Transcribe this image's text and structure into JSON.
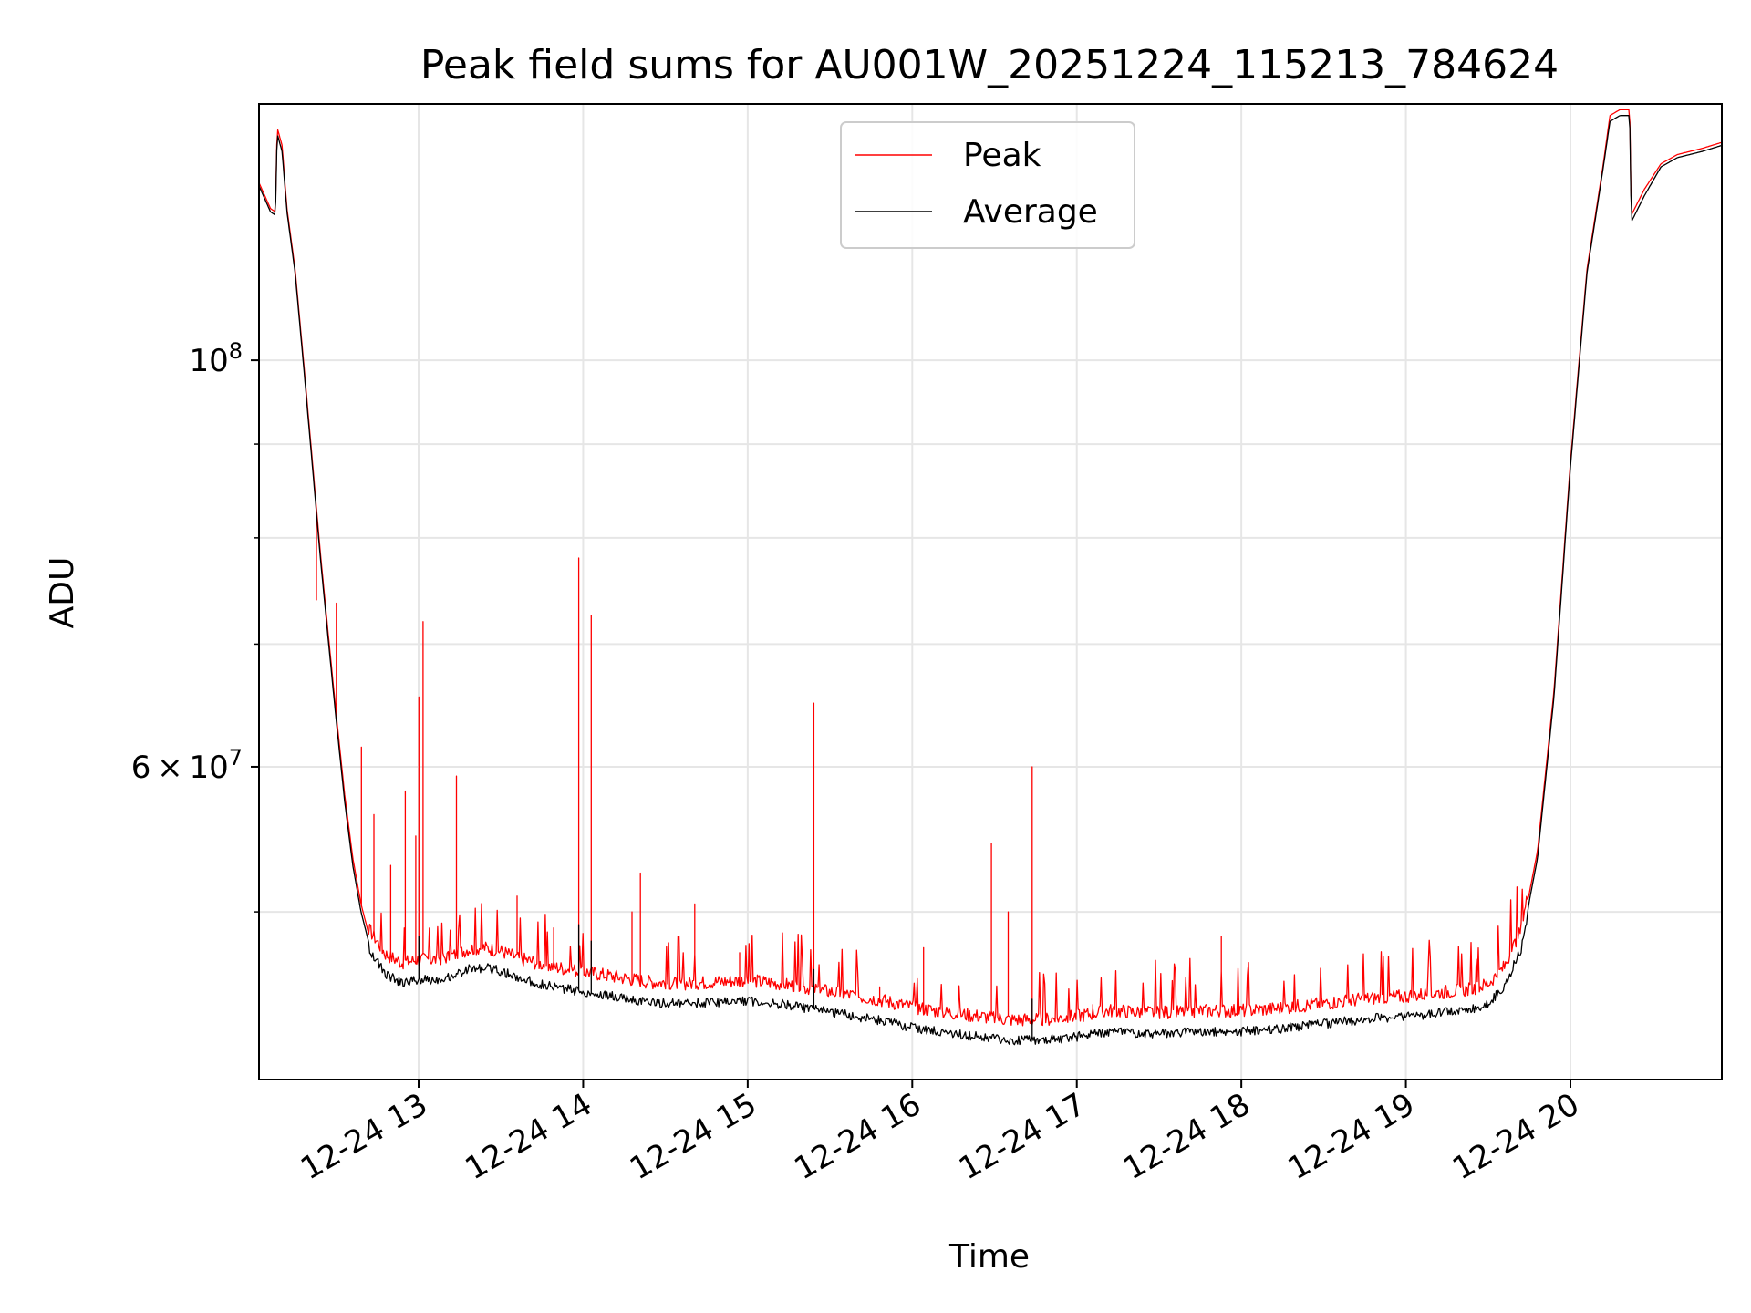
{
  "chart_data": {
    "type": "line",
    "title": "Peak field sums for AU001W_20251224_115213_784624",
    "xlabel": "Time",
    "ylabel": "ADU",
    "yscale": "log",
    "ylim": [
      40500000,
      138000000
    ],
    "xlim": [
      12.03,
      20.92
    ],
    "x_ticks": [
      {
        "value": 13,
        "label": "12-24 13"
      },
      {
        "value": 14,
        "label": "12-24 14"
      },
      {
        "value": 15,
        "label": "12-24 15"
      },
      {
        "value": 16,
        "label": "12-24 16"
      },
      {
        "value": 17,
        "label": "12-24 17"
      },
      {
        "value": 18,
        "label": "12-24 18"
      },
      {
        "value": 19,
        "label": "12-24 19"
      },
      {
        "value": 20,
        "label": "12-24 20"
      }
    ],
    "y_major_ticks": [
      {
        "value": 100000000,
        "base": "10",
        "exp": "8"
      },
      {
        "value": 60000000,
        "mantissa": "6",
        "times": "×",
        "base": "10",
        "exp": "7"
      }
    ],
    "y_minor_ticks": [
      50000000,
      70000000,
      80000000,
      90000000
    ],
    "grid": true,
    "legend": {
      "position": "top-center",
      "entries": [
        "Peak",
        "Average"
      ]
    },
    "series": [
      {
        "name": "Peak",
        "color": "#ff0000",
        "baseline": [
          [
            12.03,
            125000000
          ],
          [
            12.1,
            121000000
          ],
          [
            12.13,
            120500000
          ],
          [
            12.14,
            134000000
          ],
          [
            12.17,
            131000000
          ],
          [
            12.2,
            121000000
          ],
          [
            12.25,
            112000000
          ],
          [
            12.3,
            100000000
          ],
          [
            12.35,
            89000000
          ],
          [
            12.4,
            79000000
          ],
          [
            12.45,
            71000000
          ],
          [
            12.5,
            64000000
          ],
          [
            12.55,
            58000000
          ],
          [
            12.6,
            53500000
          ],
          [
            12.65,
            50500000
          ],
          [
            12.7,
            48500000
          ],
          [
            12.8,
            47000000
          ],
          [
            12.9,
            46500000
          ],
          [
            13.0,
            46700000
          ],
          [
            13.1,
            46700000
          ],
          [
            13.2,
            46900000
          ],
          [
            13.3,
            47300000
          ],
          [
            13.4,
            47400000
          ],
          [
            13.5,
            47200000
          ],
          [
            13.6,
            46800000
          ],
          [
            13.8,
            46300000
          ],
          [
            14.0,
            46000000
          ],
          [
            14.2,
            45700000
          ],
          [
            14.4,
            45400000
          ],
          [
            14.6,
            45300000
          ],
          [
            14.8,
            45400000
          ],
          [
            15.0,
            45500000
          ],
          [
            15.2,
            45300000
          ],
          [
            15.4,
            45000000
          ],
          [
            15.6,
            44700000
          ],
          [
            15.8,
            44400000
          ],
          [
            16.0,
            44000000
          ],
          [
            16.2,
            43700000
          ],
          [
            16.4,
            43500000
          ],
          [
            16.6,
            43300000
          ],
          [
            16.8,
            43300000
          ],
          [
            17.0,
            43500000
          ],
          [
            17.2,
            43800000
          ],
          [
            17.4,
            43700000
          ],
          [
            17.6,
            43700000
          ],
          [
            17.8,
            43800000
          ],
          [
            18.0,
            43800000
          ],
          [
            18.2,
            43900000
          ],
          [
            18.4,
            44100000
          ],
          [
            18.6,
            44300000
          ],
          [
            18.8,
            44500000
          ],
          [
            19.0,
            44600000
          ],
          [
            19.2,
            44800000
          ],
          [
            19.4,
            45000000
          ],
          [
            19.5,
            45300000
          ],
          [
            19.6,
            46300000
          ],
          [
            19.7,
            48500000
          ],
          [
            19.8,
            54000000
          ],
          [
            19.9,
            66000000
          ],
          [
            20.0,
            88000000
          ],
          [
            20.1,
            112000000
          ],
          [
            20.2,
            128000000
          ],
          [
            20.24,
            136000000
          ],
          [
            20.3,
            137000000
          ],
          [
            20.36,
            137000000
          ],
          [
            20.37,
            120000000
          ],
          [
            20.45,
            124000000
          ],
          [
            20.55,
            128000000
          ],
          [
            20.65,
            129500000
          ],
          [
            20.8,
            130500000
          ],
          [
            20.92,
            131500000
          ]
        ],
        "spikes": [
          [
            12.38,
            74000000
          ],
          [
            12.5,
            73700000
          ],
          [
            12.65,
            61500000
          ],
          [
            12.73,
            56500000
          ],
          [
            12.83,
            53000000
          ],
          [
            12.92,
            58200000
          ],
          [
            12.98,
            55000000
          ],
          [
            13.0,
            65500000
          ],
          [
            13.03,
            72000000
          ],
          [
            13.23,
            59300000
          ],
          [
            13.6,
            51000000
          ],
          [
            13.82,
            49000000
          ],
          [
            13.97,
            78000000
          ],
          [
            14.05,
            72600000
          ],
          [
            14.3,
            50000000
          ],
          [
            14.35,
            52500000
          ],
          [
            14.68,
            50500000
          ],
          [
            14.95,
            47500000
          ],
          [
            15.4,
            65000000
          ],
          [
            15.8,
            45500000
          ],
          [
            16.07,
            47800000
          ],
          [
            16.48,
            54500000
          ],
          [
            16.58,
            50000000
          ],
          [
            16.73,
            60000000
          ],
          [
            17.1,
            44500000
          ],
          [
            17.88,
            48500000
          ]
        ]
      },
      {
        "name": "Average",
        "color": "#000000",
        "baseline": [
          [
            12.03,
            124500000
          ],
          [
            12.1,
            120500000
          ],
          [
            12.13,
            120000000
          ],
          [
            12.14,
            133000000
          ],
          [
            12.17,
            130000000
          ],
          [
            12.2,
            120500000
          ],
          [
            12.25,
            111500000
          ],
          [
            12.3,
            99500000
          ],
          [
            12.35,
            88500000
          ],
          [
            12.4,
            78500000
          ],
          [
            12.45,
            70500000
          ],
          [
            12.5,
            63500000
          ],
          [
            12.55,
            57500000
          ],
          [
            12.6,
            53000000
          ],
          [
            12.65,
            50000000
          ],
          [
            12.7,
            48000000
          ],
          [
            12.8,
            46500000
          ],
          [
            12.9,
            46000000
          ],
          [
            13.0,
            46200000
          ],
          [
            13.1,
            46200000
          ],
          [
            13.2,
            46400000
          ],
          [
            13.3,
            46800000
          ],
          [
            13.4,
            46900000
          ],
          [
            13.5,
            46700000
          ],
          [
            13.6,
            46300000
          ],
          [
            13.8,
            45800000
          ],
          [
            14.0,
            45500000
          ],
          [
            14.2,
            45200000
          ],
          [
            14.4,
            44900000
          ],
          [
            14.6,
            44800000
          ],
          [
            14.8,
            44900000
          ],
          [
            15.0,
            45000000
          ],
          [
            15.2,
            44800000
          ],
          [
            15.4,
            44500000
          ],
          [
            15.6,
            44200000
          ],
          [
            15.8,
            43900000
          ],
          [
            16.0,
            43500000
          ],
          [
            16.2,
            43200000
          ],
          [
            16.4,
            43000000
          ],
          [
            16.6,
            42800000
          ],
          [
            16.8,
            42800000
          ],
          [
            17.0,
            43000000
          ],
          [
            17.2,
            43300000
          ],
          [
            17.4,
            43200000
          ],
          [
            17.6,
            43200000
          ],
          [
            17.8,
            43300000
          ],
          [
            18.0,
            43300000
          ],
          [
            18.2,
            43400000
          ],
          [
            18.4,
            43600000
          ],
          [
            18.6,
            43800000
          ],
          [
            18.8,
            44000000
          ],
          [
            19.0,
            44100000
          ],
          [
            19.2,
            44300000
          ],
          [
            19.4,
            44500000
          ],
          [
            19.5,
            44800000
          ],
          [
            19.6,
            45800000
          ],
          [
            19.7,
            48000000
          ],
          [
            19.8,
            53500000
          ],
          [
            19.9,
            65500000
          ],
          [
            20.0,
            87500000
          ],
          [
            20.1,
            111500000
          ],
          [
            20.2,
            127500000
          ],
          [
            20.24,
            135000000
          ],
          [
            20.3,
            136000000
          ],
          [
            20.36,
            136000000
          ],
          [
            20.37,
            119000000
          ],
          [
            20.45,
            123000000
          ],
          [
            20.55,
            127500000
          ],
          [
            20.65,
            129000000
          ],
          [
            20.8,
            130000000
          ],
          [
            20.92,
            131000000
          ]
        ],
        "spikes": [
          [
            13.0,
            48500000
          ],
          [
            13.97,
            49200000
          ],
          [
            14.05,
            48200000
          ],
          [
            15.4,
            46500000
          ],
          [
            16.73,
            44800000
          ]
        ]
      }
    ]
  }
}
